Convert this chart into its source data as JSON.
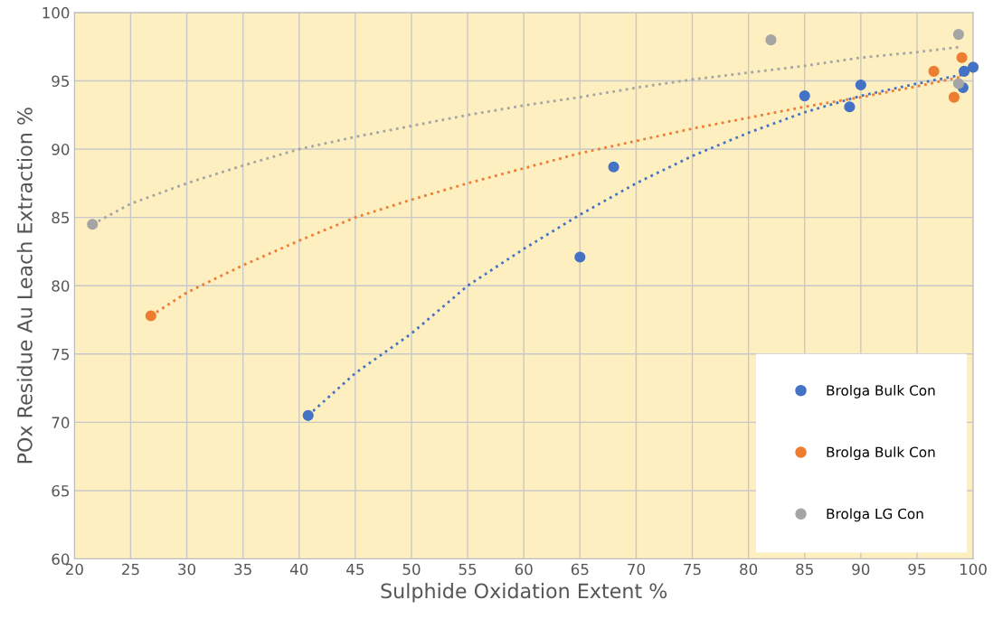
{
  "chart_data": {
    "type": "scatter",
    "xlabel": "Sulphide Oxidation Extent %",
    "ylabel": "POx Residue Au Leach Extraction %",
    "xlim": [
      20,
      100
    ],
    "xticks": [
      20,
      25,
      30,
      35,
      40,
      45,
      50,
      55,
      60,
      65,
      70,
      75,
      80,
      85,
      90,
      95,
      100
    ],
    "ylim": [
      60,
      100
    ],
    "yticks": [
      60,
      65,
      70,
      75,
      80,
      85,
      90,
      95,
      100
    ],
    "grid": true,
    "legend": "bottom right",
    "marker": "circle",
    "series": [
      {
        "name": "Brolga Bulk Con",
        "color": "#4472c4",
        "x": [
          40.8,
          65,
          68,
          85,
          89,
          90,
          99.1,
          99.2,
          100
        ],
        "values": [
          70.5,
          82.1,
          88.7,
          93.9,
          93.1,
          94.7,
          94.5,
          95.7,
          96
        ]
      },
      {
        "name": "Brolga Bulk Con",
        "color": "#ed7d31",
        "x": [
          26.8,
          96.5,
          98.3,
          99
        ],
        "values": [
          77.8,
          95.7,
          93.8,
          96.7
        ]
      },
      {
        "name": "Brolga LG Con",
        "color": "#a5a5a5",
        "x": [
          21.6,
          82,
          98.7,
          98.7
        ],
        "values": [
          84.5,
          98,
          98.4,
          94.8
        ]
      },
      {
        "type": "line",
        "line_style": "dotted",
        "marker": "none",
        "color": "#4472c4",
        "x": [
          40.8,
          45,
          50,
          55,
          60,
          65,
          70,
          75,
          80,
          85,
          90,
          95,
          100
        ],
        "values": [
          70.5,
          73.6,
          76.5,
          80,
          82.7,
          85.2,
          87.5,
          89.5,
          91.2,
          92.7,
          93.9,
          94.8,
          95.6
        ]
      },
      {
        "type": "line",
        "line_style": "dotted",
        "marker": "none",
        "color": "#ed7d31",
        "x": [
          26.8,
          30,
          35,
          40,
          45,
          50,
          55,
          60,
          65,
          70,
          75,
          80,
          85,
          90,
          95,
          99
        ],
        "values": [
          77.8,
          79.5,
          81.5,
          83.3,
          85,
          86.3,
          87.5,
          88.6,
          89.7,
          90.6,
          91.5,
          92.3,
          93.1,
          93.8,
          94.6,
          95.3
        ]
      },
      {
        "type": "line",
        "line_style": "dotted",
        "marker": "none",
        "color": "#a5a5a5",
        "x": [
          21.6,
          25,
          30,
          35,
          40,
          45,
          50,
          55,
          60,
          65,
          70,
          75,
          80,
          85,
          90,
          95,
          99
        ],
        "values": [
          84.5,
          86,
          87.5,
          88.8,
          90,
          90.9,
          91.7,
          92.5,
          93.2,
          93.8,
          94.5,
          95.1,
          95.6,
          96.1,
          96.7,
          97.1,
          97.5
        ]
      }
    ]
  }
}
